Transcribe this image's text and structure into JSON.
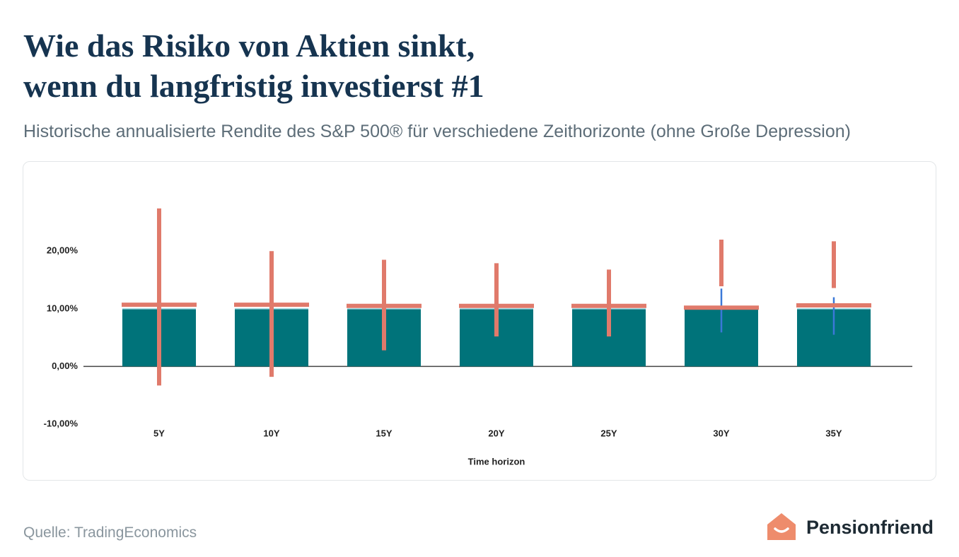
{
  "chart_data": {
    "type": "bar",
    "title": [
      "Wie das Risiko von Aktien sinkt,",
      "wenn du langfristig investierst #1"
    ],
    "subtitle": "Historische annualisierte Rendite des S&P 500® für verschiedene Zeithorizonte (ohne Große Depression)",
    "xlabel": "Time horizon",
    "categories": [
      "5Y",
      "10Y",
      "15Y",
      "20Y",
      "25Y",
      "30Y",
      "35Y"
    ],
    "values": [
      10,
      10,
      10,
      10,
      10,
      10,
      10
    ],
    "color": "#00737a",
    "mean_line": {
      "color": "#e07a6b",
      "values": [
        10.7,
        10.7,
        10.5,
        10.5,
        10.5,
        10.2,
        10.6
      ]
    },
    "red_range": {
      "color": "#e07a6b",
      "low": [
        -3.3,
        -1.8,
        2.8,
        5.2,
        5.2,
        13.9,
        13.6
      ],
      "high": [
        27.4,
        20.0,
        18.5,
        17.9,
        16.8,
        22.0,
        21.7
      ]
    },
    "blue_range": {
      "color": "#3b78d8",
      "low": [
        null,
        null,
        null,
        null,
        null,
        5.9,
        5.5
      ],
      "high": [
        null,
        null,
        null,
        null,
        null,
        13.5,
        12.0
      ]
    },
    "ylim": [
      -10,
      28
    ],
    "yticks": [
      {
        "value": -10,
        "label": "-10,00%"
      },
      {
        "value": 0,
        "label": "0,00%"
      },
      {
        "value": 10,
        "label": "10,00%"
      },
      {
        "value": 20,
        "label": "20,00%"
      }
    ],
    "source": "Quelle: TradingEconomics",
    "brand": "Pensionfriend"
  }
}
